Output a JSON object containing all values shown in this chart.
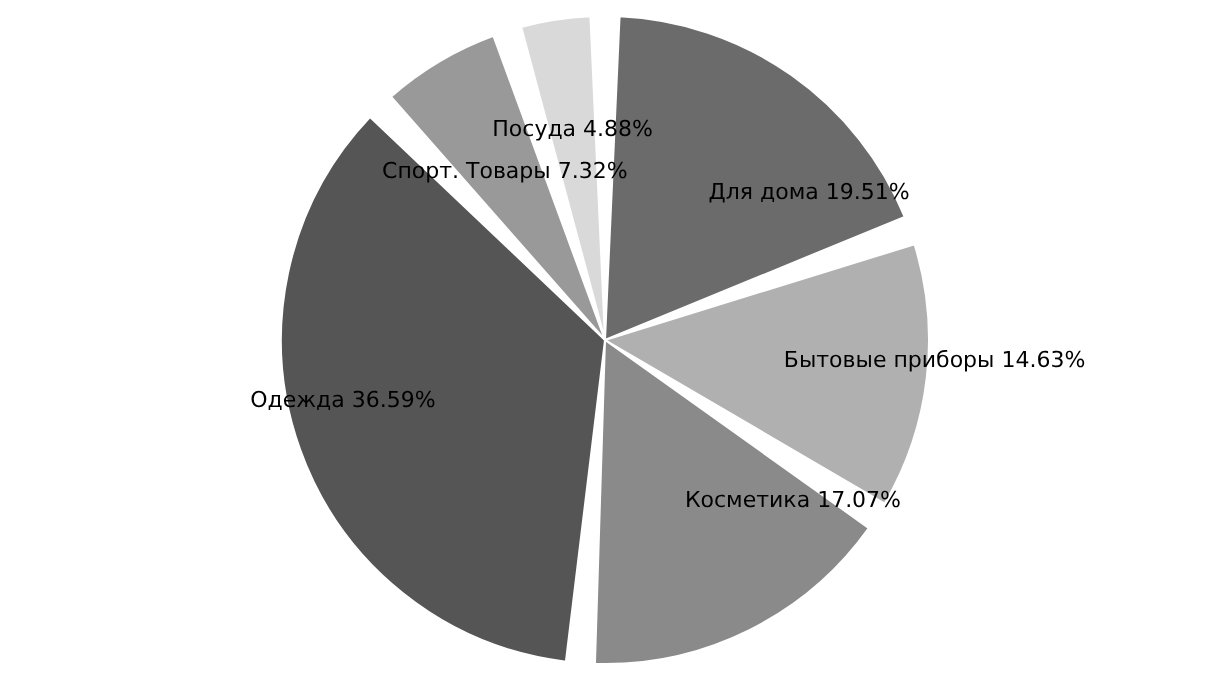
{
  "chart_data": {
    "type": "pie",
    "categories": [
      "Для дома",
      "Бытовые приборы",
      "Косметика",
      "Одежда",
      "Спорт. Товары",
      "Посуда"
    ],
    "values": [
      19.51,
      14.63,
      17.07,
      36.59,
      7.32,
      4.88
    ],
    "value_labels": [
      "19.51%",
      "14.63%",
      "17.07%",
      "36.59%",
      "7.32%",
      "4.88%"
    ],
    "colors": [
      "#6b6b6b",
      "#b0b0b0",
      "#8a8a8a",
      "#555555",
      "#999999",
      "#d9d9d9"
    ]
  }
}
